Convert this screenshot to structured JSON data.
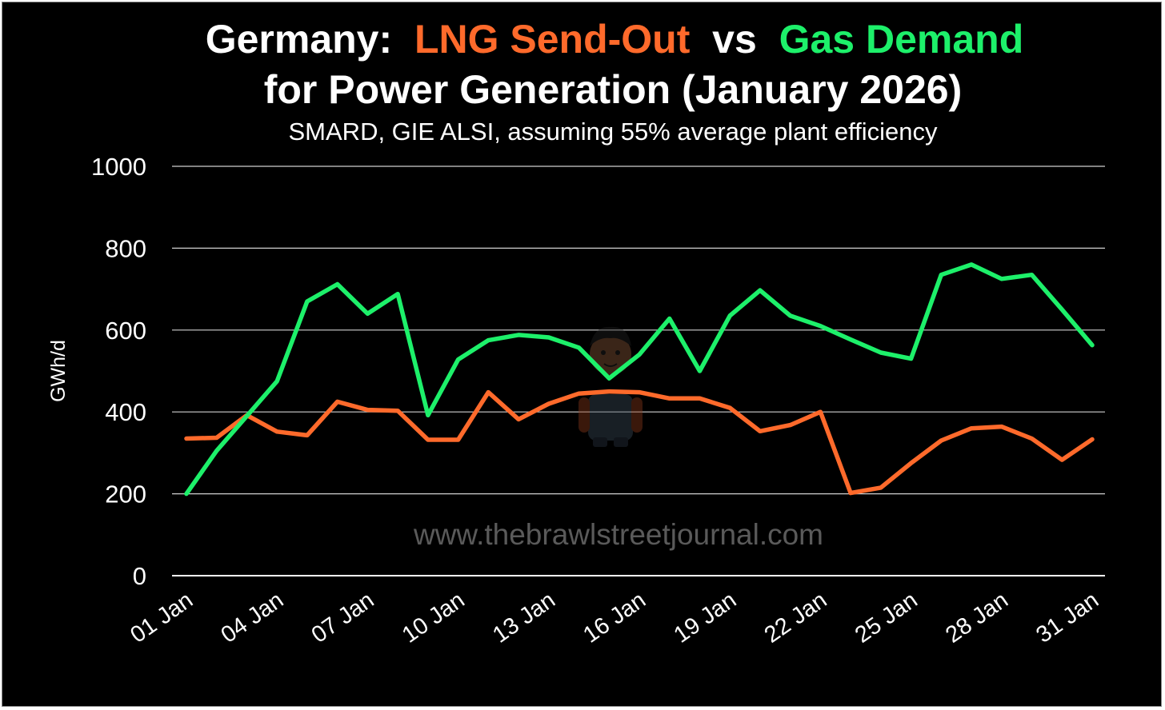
{
  "chart_data": {
    "type": "line",
    "title_parts": [
      {
        "text": "Germany: ",
        "color": "#ffffff"
      },
      {
        "text": "LNG Send-Out",
        "color": "#ff6a2b"
      },
      {
        "text": " vs ",
        "color": "#ffffff"
      },
      {
        "text": "Gas Demand",
        "color": "#1df06a"
      }
    ],
    "title_line2": "for Power Generation (January 2026)",
    "subtitle": "SMARD, GIE ALSI, assuming 55% average plant efficiency",
    "ylabel": "GWh/d",
    "xlabel": "",
    "ylim": [
      0,
      1000
    ],
    "yticks": [
      "0",
      "200",
      "400",
      "600",
      "800",
      "1000"
    ],
    "ytick_values": [
      0,
      200,
      400,
      600,
      800,
      1000
    ],
    "x": [
      "01 Jan",
      "02 Jan",
      "03 Jan",
      "04 Jan",
      "05 Jan",
      "06 Jan",
      "07 Jan",
      "08 Jan",
      "09 Jan",
      "10 Jan",
      "11 Jan",
      "12 Jan",
      "13 Jan",
      "14 Jan",
      "15 Jan",
      "16 Jan",
      "17 Jan",
      "18 Jan",
      "19 Jan",
      "20 Jan",
      "21 Jan",
      "22 Jan",
      "23 Jan",
      "24 Jan",
      "25 Jan",
      "26 Jan",
      "27 Jan",
      "28 Jan",
      "29 Jan",
      "30 Jan",
      "31 Jan"
    ],
    "xtick_labels": [
      "01 Jan",
      "04 Jan",
      "07 Jan",
      "10 Jan",
      "13 Jan",
      "16 Jan",
      "19 Jan",
      "22 Jan",
      "25 Jan",
      "28 Jan",
      "31 Jan"
    ],
    "grid": true,
    "background": "#000000",
    "series": [
      {
        "key": "lng",
        "color": "#ff6a2b",
        "values": [
          335,
          337,
          392,
          352,
          343,
          425,
          405,
          403,
          332,
          332,
          448,
          382,
          420,
          445,
          450,
          448,
          433,
          433,
          410,
          353,
          368,
          400,
          202,
          215,
          275,
          330,
          360,
          364,
          335,
          283,
          333
        ]
      },
      {
        "key": "demand",
        "color": "#1df06a",
        "values": [
          200,
          305,
          390,
          475,
          670,
          712,
          640,
          688,
          392,
          528,
          575,
          588,
          582,
          557,
          482,
          540,
          628,
          500,
          635,
          697,
          635,
          610,
          577,
          545,
          530,
          735,
          760,
          725,
          735,
          650,
          563
        ]
      }
    ]
  },
  "watermark": {
    "text": "www.thebrawlstreetjournal.com",
    "mascot_icon": "mascot-icon"
  }
}
